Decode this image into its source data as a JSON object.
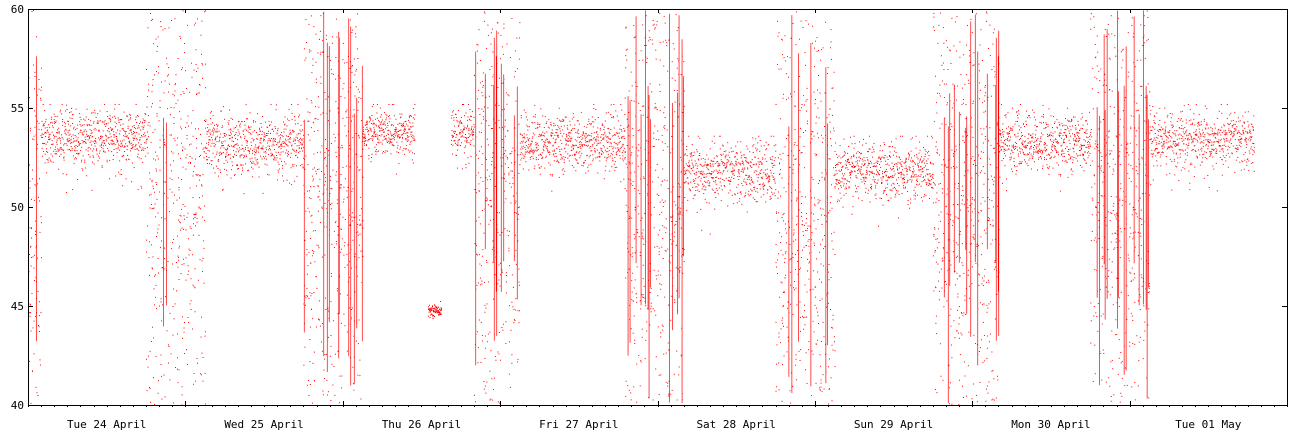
{
  "chart_data": {
    "type": "scatter",
    "title": "",
    "xlabel": "",
    "ylabel": "",
    "ylim": [
      40,
      60
    ],
    "yticks": [
      40,
      45,
      50,
      55,
      60
    ],
    "ytick_labels": [
      "40",
      "45",
      "50",
      "55",
      "60"
    ],
    "xlim": [
      "Tue 24 April 00:00",
      "Wed 02 May 00:00"
    ],
    "xtick_labels": [
      "Tue 24 April",
      "Wed 25 April",
      "Thu 26 April",
      "Fri 27 April",
      "Sat 28 April",
      "Sun 29 April",
      "Mon 30 April",
      "Tue 01 May"
    ],
    "grid": false,
    "legend": "none",
    "series": [
      {
        "color": "#ff0000",
        "marker": "dot",
        "data_start": "Tue 24 April 00:00",
        "data_end": "Tue 01 May 19:00",
        "segments": [
          {
            "from": "Tue 24 April 00:00",
            "to": "Tue 24 April 02:00",
            "kind": "noisy",
            "low": 40,
            "high": 60,
            "center": 50
          },
          {
            "from": "Tue 24 April 02:00",
            "to": "Tue 24 April 18:00",
            "kind": "band",
            "center": 53.5,
            "spread": 1.6,
            "floor": 50.7,
            "ceiling": 55.2
          },
          {
            "from": "Tue 24 April 18:00",
            "to": "Wed 25 April 03:00",
            "kind": "noisy",
            "low": 40,
            "high": 60,
            "center": 51
          },
          {
            "from": "Wed 25 April 03:00",
            "to": "Wed 25 April 18:00",
            "kind": "band",
            "center": 53.2,
            "spread": 1.7,
            "floor": 50.7,
            "ceiling": 55.2
          },
          {
            "from": "Wed 25 April 18:00",
            "to": "Thu 26 April 03:00",
            "kind": "noisy",
            "low": 40,
            "high": 60,
            "center": 51
          },
          {
            "from": "Thu 26 April 03:00",
            "to": "Thu 26 April 11:00",
            "kind": "band",
            "center": 53.8,
            "spread": 1.3,
            "floor": 51.5,
            "ceiling": 55.2
          },
          {
            "from": "Thu 26 April 11:00",
            "to": "Thu 26 April 13:00",
            "kind": "gap"
          },
          {
            "from": "Thu 26 April 13:00",
            "to": "Thu 26 April 15:00",
            "kind": "band",
            "center": 44.8,
            "spread": 0.3,
            "floor": 42.3,
            "ceiling": 45.3
          },
          {
            "from": "Thu 26 April 15:00",
            "to": "Thu 26 April 16:30",
            "kind": "gap"
          },
          {
            "from": "Thu 26 April 16:30",
            "to": "Thu 26 April 20:00",
            "kind": "band",
            "center": 53.8,
            "spread": 1.3,
            "floor": 51.5,
            "ceiling": 55.2
          },
          {
            "from": "Thu 26 April 20:00",
            "to": "Fri 27 April 03:00",
            "kind": "noisy",
            "low": 40,
            "high": 60,
            "center": 51
          },
          {
            "from": "Fri 27 April 03:00",
            "to": "Fri 27 April 19:00",
            "kind": "band",
            "center": 53.3,
            "spread": 1.6,
            "floor": 50.7,
            "ceiling": 55.2
          },
          {
            "from": "Fri 27 April 19:00",
            "to": "Sat 28 April 04:00",
            "kind": "noisy",
            "low": 40,
            "high": 60,
            "center": 50
          },
          {
            "from": "Sat 28 April 04:00",
            "to": "Sat 28 April 18:00",
            "kind": "band",
            "center": 51.8,
            "spread": 1.7,
            "floor": 48.5,
            "ceiling": 53.6
          },
          {
            "from": "Sat 28 April 18:00",
            "to": "Sun 29 April 03:00",
            "kind": "noisy",
            "low": 40,
            "high": 60,
            "center": 50
          },
          {
            "from": "Sun 29 April 03:00",
            "to": "Sun 29 April 18:00",
            "kind": "band",
            "center": 51.8,
            "spread": 1.6,
            "floor": 48.5,
            "ceiling": 53.6
          },
          {
            "from": "Sun 29 April 18:00",
            "to": "Mon 30 April 04:00",
            "kind": "noisy",
            "low": 40,
            "high": 60,
            "center": 50
          },
          {
            "from": "Mon 30 April 04:00",
            "to": "Mon 30 April 18:00",
            "kind": "band",
            "center": 53.3,
            "spread": 1.6,
            "floor": 50.7,
            "ceiling": 55.2
          },
          {
            "from": "Mon 30 April 18:00",
            "to": "Tue 01 May 03:00",
            "kind": "noisy",
            "low": 40,
            "high": 60,
            "center": 51
          },
          {
            "from": "Tue 01 May 03:00",
            "to": "Tue 01 May 19:00",
            "kind": "band",
            "center": 53.4,
            "spread": 1.6,
            "floor": 50.7,
            "ceiling": 55.2
          }
        ]
      }
    ]
  }
}
